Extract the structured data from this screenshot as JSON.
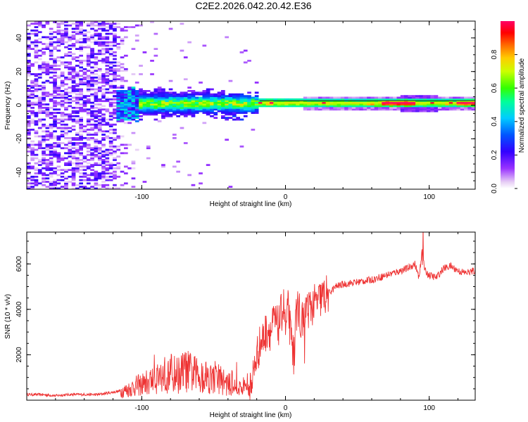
{
  "title": "C2E2.2026.042.20.42.E36",
  "chart_data": [
    {
      "type": "heatmap",
      "xlabel": "Height of straight line (km)",
      "ylabel": "Frequency (Hz)",
      "xlim": [
        -180,
        132
      ],
      "ylim": [
        -50,
        50
      ],
      "xticks": [
        -100,
        0,
        100
      ],
      "yticks": [
        -40,
        -20,
        0,
        20,
        40
      ],
      "colorbar": {
        "label": "Normalized spectral amplitude",
        "range": [
          0.0,
          1.0
        ],
        "ticks": [
          0.0,
          0.2,
          0.4,
          0.6,
          0.8
        ],
        "tick_labels": [
          "0.0",
          "0.2",
          "0.4",
          "0.6",
          "0.8"
        ],
        "colormap": "rainbow (purple → blue → cyan → green → yellow → orange → red → magenta)"
      },
      "regions": [
        {
          "x_range": [
            -180,
            -120
          ],
          "freq_range": [
            -50,
            50
          ],
          "amplitude": "low (0.0-0.2), noise speckle"
        },
        {
          "x_range": [
            -120,
            -20
          ],
          "freq_range": [
            -10,
            8
          ],
          "amplitude": "0.1-0.5, broad band centered ~0 Hz"
        },
        {
          "x_range": [
            -20,
            132
          ],
          "freq_range": [
            -2,
            3
          ],
          "amplitude": "0.4-1.0, narrow line at ~0-1 Hz"
        }
      ]
    },
    {
      "type": "line",
      "xlabel": "Height of straight line (km)",
      "ylabel": "SNR (10 * v/v)",
      "xlim": [
        -180,
        132
      ],
      "ylim": [
        0,
        7400
      ],
      "xticks": [
        -100,
        0,
        100
      ],
      "yticks": [
        2000,
        4000,
        6000
      ],
      "series": [
        {
          "name": "SNR",
          "color": "#ee3333",
          "x": [
            -180,
            -170,
            -160,
            -150,
            -140,
            -130,
            -125,
            -120,
            -115,
            -110,
            -105,
            -100,
            -95,
            -90,
            -85,
            -80,
            -75,
            -70,
            -65,
            -60,
            -55,
            -50,
            -45,
            -40,
            -35,
            -30,
            -25,
            -22,
            -20,
            -18,
            -15,
            -12,
            -10,
            -8,
            -6,
            -5,
            -3,
            -1,
            0,
            2,
            4,
            6,
            8,
            10,
            12,
            15,
            20,
            25,
            30,
            35,
            40,
            50,
            60,
            70,
            80,
            85,
            90,
            93,
            95,
            97,
            100,
            105,
            110,
            115,
            120,
            125,
            132
          ],
          "y": [
            250,
            250,
            200,
            250,
            250,
            250,
            300,
            350,
            400,
            450,
            600,
            700,
            800,
            1000,
            1100,
            1200,
            1100,
            1300,
            1200,
            1000,
            1100,
            900,
            900,
            700,
            600,
            500,
            600,
            1200,
            2000,
            2400,
            2800,
            3200,
            3000,
            3500,
            3300,
            3200,
            3800,
            4200,
            3000,
            4100,
            2500,
            2000,
            4200,
            3800,
            3400,
            4000,
            4200,
            4500,
            4700,
            5000,
            5100,
            5200,
            5300,
            5500,
            5700,
            5800,
            6000,
            5400,
            6600,
            5700,
            5500,
            5400,
            5800,
            5900,
            5700,
            5600,
            5700
          ]
        }
      ]
    }
  ]
}
